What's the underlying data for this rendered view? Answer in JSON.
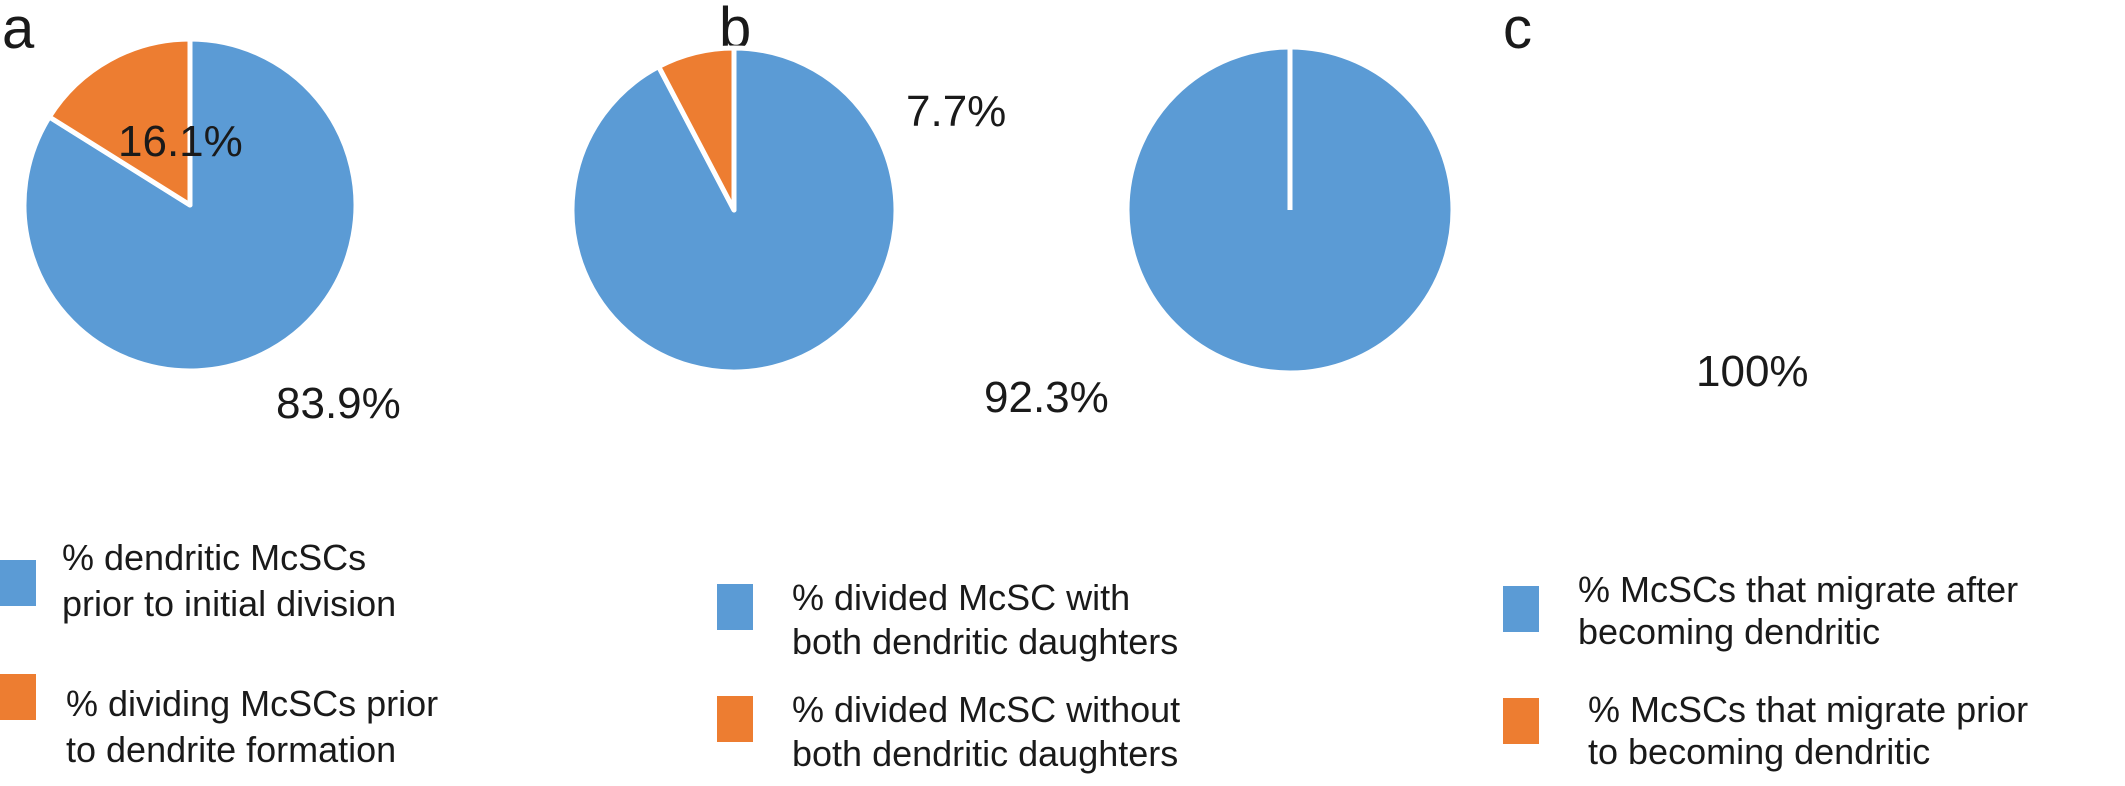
{
  "colors": {
    "blue": "#5b9bd5",
    "orange": "#ed7d31",
    "separator": "#ffffff"
  },
  "chart_data": [
    {
      "type": "pie",
      "panel": "a",
      "slices": [
        {
          "legend": [
            "% dendritic McSCs",
            "prior to initial division"
          ],
          "value": 83.9,
          "label": "83.9%",
          "color": "#5b9bd5"
        },
        {
          "legend": [
            "% dividing McSCs prior",
            "to dendrite formation"
          ],
          "value": 16.1,
          "label": "16.1%",
          "color": "#ed7d31"
        }
      ]
    },
    {
      "type": "pie",
      "panel": "b",
      "slices": [
        {
          "legend": [
            "% divided McSC with",
            "both dendritic daughters"
          ],
          "value": 92.3,
          "label": "92.3%",
          "color": "#5b9bd5"
        },
        {
          "legend": [
            "% divided McSC without",
            "both dendritic daughters"
          ],
          "value": 7.7,
          "label": "7.7%",
          "color": "#ed7d31"
        }
      ]
    },
    {
      "type": "pie",
      "panel": "c",
      "slices": [
        {
          "legend": [
            "% McSCs that migrate after",
            "becoming dendritic"
          ],
          "value": 100,
          "label": "100%",
          "color": "#5b9bd5"
        },
        {
          "legend": [
            "% McSCs that migrate prior",
            "to becoming dendritic"
          ],
          "value": 0,
          "label": "",
          "color": "#ed7d31"
        }
      ]
    }
  ]
}
